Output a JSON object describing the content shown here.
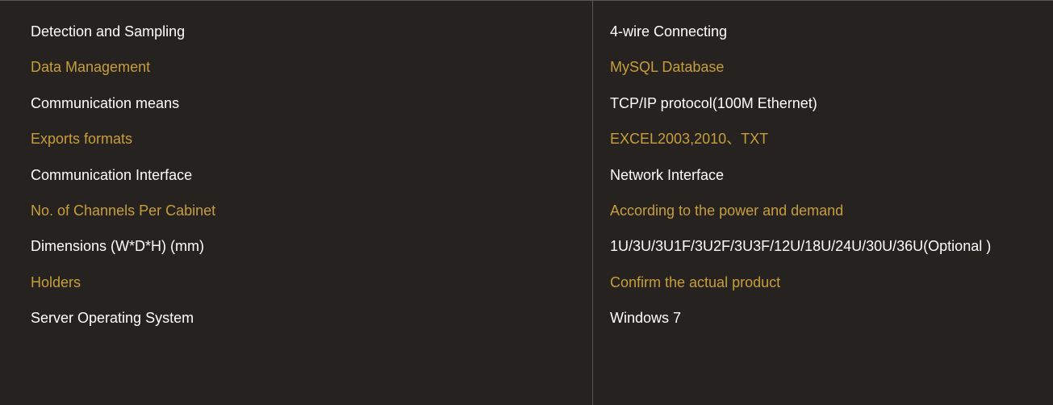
{
  "colors": {
    "background": "#252220",
    "text_primary": "#ffffff",
    "text_accent": "#c89e3c",
    "border": "#5a5653"
  },
  "typography": {
    "font_family": "Arial",
    "font_size_pt": 14
  },
  "spec_table": {
    "type": "table",
    "columns": [
      "label",
      "value"
    ],
    "rows": [
      {
        "label": "Detection and Sampling",
        "value": "4-wire Connecting",
        "row_color": "white"
      },
      {
        "label": "Data Management",
        "value": "MySQL Database",
        "row_color": "gold"
      },
      {
        "label": "Communication means",
        "value": "TCP/IP protocol(100M Ethernet)",
        "row_color": "white"
      },
      {
        "label": "Exports formats",
        "value": "EXCEL2003,2010、TXT",
        "row_color": "gold"
      },
      {
        "label": "Communication Interface",
        "value": "Network Interface",
        "row_color": "white"
      },
      {
        "label": "No. of Channels Per Cabinet",
        "value": "According to the power and demand",
        "row_color": "gold"
      },
      {
        "label": "Dimensions   (W*D*H)  (mm)",
        "value": "1U/3U/3U1F/3U2F/3U3F/12U/18U/24U/30U/36U(Optional )",
        "row_color": "white"
      },
      {
        "label": "Holders",
        "value": "Confirm the actual product",
        "row_color": "gold"
      },
      {
        "label": "Server Operating System",
        "value": "Windows 7",
        "row_color": "white"
      }
    ]
  }
}
